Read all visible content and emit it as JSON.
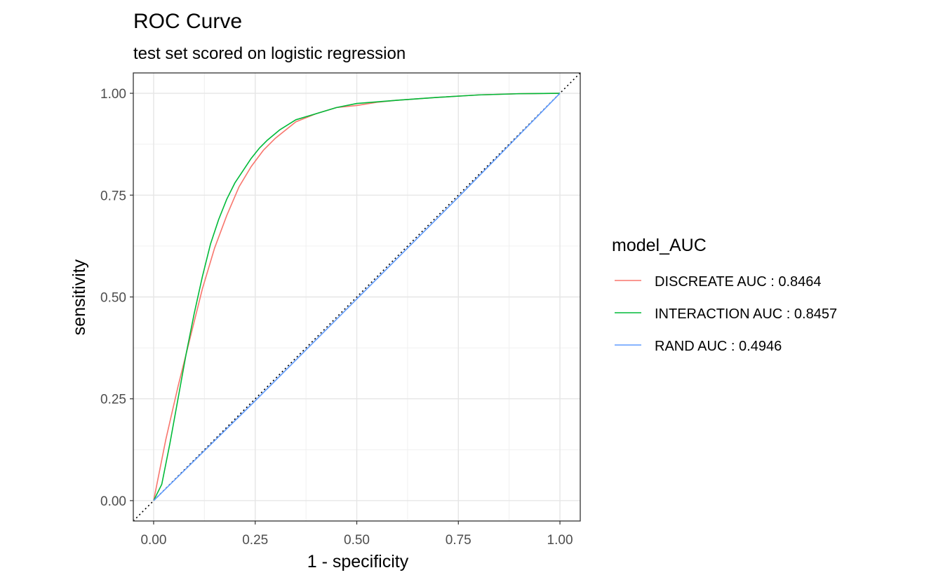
{
  "chart_data": {
    "type": "line",
    "title": "ROC Curve",
    "subtitle": "test set scored on logistic regression",
    "xlabel": "1 - specificity",
    "ylabel": "sensitivity",
    "xlim": [
      -0.05,
      1.05
    ],
    "ylim": [
      -0.05,
      1.05
    ],
    "x_ticks": [
      "0.00",
      "0.25",
      "0.50",
      "0.75",
      "1.00"
    ],
    "y_ticks": [
      "0.00",
      "0.25",
      "0.50",
      "0.75",
      "1.00"
    ],
    "grid": true,
    "legend_title": "model_AUC",
    "legend_position": "right",
    "reference_line": {
      "style": "dotted",
      "color": "#000000",
      "x": [
        -0.05,
        1.05
      ],
      "y": [
        -0.05,
        1.05
      ]
    },
    "series": [
      {
        "name": "DISCREATE AUC : 0.8464",
        "color": "#F8766D",
        "x": [
          0.0,
          0.03,
          0.06,
          0.09,
          0.12,
          0.15,
          0.18,
          0.21,
          0.24,
          0.27,
          0.3,
          0.35,
          0.4,
          0.45,
          0.5,
          0.55,
          0.6,
          0.7,
          0.8,
          0.9,
          1.0
        ],
        "y": [
          0.0,
          0.15,
          0.28,
          0.4,
          0.52,
          0.62,
          0.7,
          0.77,
          0.82,
          0.86,
          0.89,
          0.93,
          0.95,
          0.965,
          0.97,
          0.978,
          0.983,
          0.99,
          0.996,
          0.999,
          1.0
        ]
      },
      {
        "name": "INTERACTION AUC : 0.8457",
        "color": "#00BA38",
        "x": [
          0.0,
          0.02,
          0.04,
          0.06,
          0.08,
          0.1,
          0.12,
          0.14,
          0.16,
          0.18,
          0.2,
          0.22,
          0.24,
          0.26,
          0.28,
          0.31,
          0.35,
          0.4,
          0.45,
          0.5,
          0.6,
          0.7,
          0.8,
          0.9,
          1.0
        ],
        "y": [
          0.0,
          0.04,
          0.14,
          0.25,
          0.36,
          0.46,
          0.55,
          0.63,
          0.69,
          0.74,
          0.78,
          0.81,
          0.84,
          0.865,
          0.885,
          0.91,
          0.935,
          0.95,
          0.965,
          0.975,
          0.983,
          0.99,
          0.996,
          0.999,
          1.0
        ]
      },
      {
        "name": "RAND AUC : 0.4946",
        "color": "#619CFF",
        "x": [
          0.0,
          0.25,
          0.5,
          0.75,
          1.0
        ],
        "y": [
          0.0,
          0.245,
          0.495,
          0.745,
          1.0
        ]
      }
    ]
  }
}
